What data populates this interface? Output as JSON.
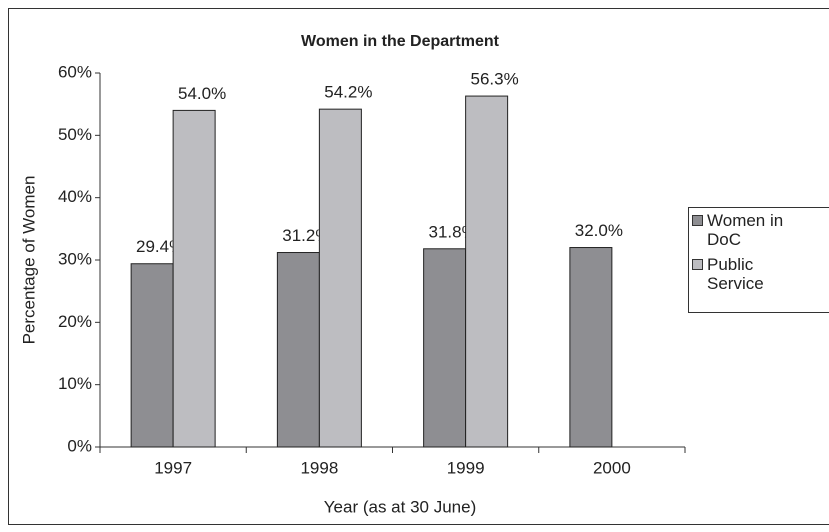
{
  "chart_data": {
    "type": "bar",
    "title": "Women in the Department",
    "x_label": "Year (as at 30 June)",
    "y_label": "Percentage of Women",
    "categories": [
      "1997",
      "1998",
      "1999",
      "2000"
    ],
    "series": [
      {
        "name": "Women in DoC",
        "color": "#8e8e92",
        "values": [
          29.4,
          31.2,
          31.8,
          32.0
        ],
        "value_labels": [
          "29.4%",
          "31.2%",
          "31.8%",
          "32.0%"
        ]
      },
      {
        "name": "Public Service",
        "color": "#bdbdc1",
        "values": [
          54.0,
          54.2,
          56.3,
          null
        ],
        "value_labels": [
          "54.0%",
          "54.2%",
          "56.3%",
          null
        ]
      }
    ],
    "ylim": [
      0,
      60
    ],
    "yticks": [
      {
        "value": 0,
        "label": "0%"
      },
      {
        "value": 10,
        "label": "10%"
      },
      {
        "value": 20,
        "label": "20%"
      },
      {
        "value": 30,
        "label": "30%"
      },
      {
        "value": 40,
        "label": "40%"
      },
      {
        "value": 50,
        "label": "50%"
      },
      {
        "value": 60,
        "label": "60%"
      }
    ],
    "grid": false,
    "legend": "right"
  }
}
